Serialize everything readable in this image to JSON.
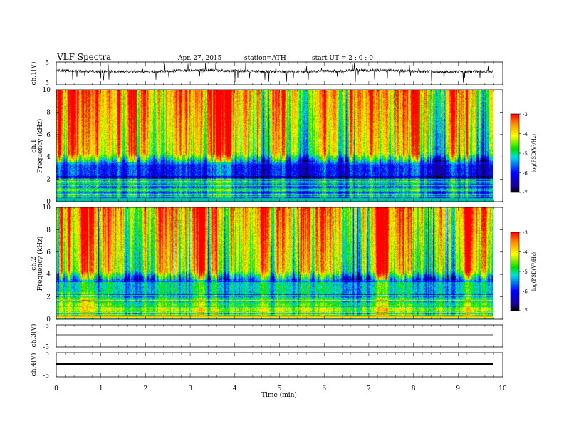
{
  "header": {
    "title": "VLF  Spectra",
    "date": "Apr. 27, 2015",
    "station": "station=ATH",
    "start": "start  UT  =   2  : 0  : 0"
  },
  "chart_data": [
    {
      "id": "ch1-waveform",
      "type": "line",
      "ylabel": "ch.1(V)",
      "ylim": [
        -5,
        5
      ],
      "yticks": [
        "5",
        "-5"
      ],
      "xlim": [
        0,
        10
      ],
      "note": "noisy waveform centred near +1 V with spikes"
    },
    {
      "id": "ch1-spectrogram",
      "type": "heatmap",
      "ylabel_top": "ch.1",
      "ylabel": "Frequency  (kHz)",
      "ylim": [
        0,
        10
      ],
      "yticks": [
        "0",
        "2",
        "4",
        "6",
        "8",
        "10"
      ],
      "xlim": [
        0,
        10
      ],
      "colorbar": {
        "label": "log(PSD(V²/Hz)",
        "range": [
          -7,
          -3
        ],
        "ticks": [
          "-3",
          "-4",
          "-5",
          "-6",
          "-7"
        ]
      }
    },
    {
      "id": "ch2-spectrogram",
      "type": "heatmap",
      "ylabel_top": "ch.2",
      "ylabel": "Frequency  (kHz)",
      "ylim": [
        0,
        10
      ],
      "yticks": [
        "0",
        "2",
        "4",
        "6",
        "8",
        "10"
      ],
      "xlim": [
        0,
        10
      ],
      "colorbar": {
        "label": "log(PSD(V²/Hz)",
        "range": [
          -7,
          -3
        ],
        "ticks": [
          "-3",
          "-4",
          "-5",
          "-6",
          "-7"
        ]
      }
    },
    {
      "id": "ch3-waveform",
      "type": "line",
      "ylabel": "ch.3(V)",
      "ylim": [
        -5,
        5
      ],
      "yticks": [
        "5",
        "-5"
      ],
      "note": "flat trace near +1 V"
    },
    {
      "id": "ch4-waveform",
      "type": "line",
      "ylabel": "ch.4(V)",
      "ylim": [
        -5,
        5
      ],
      "yticks": [
        "5",
        "-5"
      ],
      "note": "thick flat trace near 0 V"
    }
  ],
  "xaxis": {
    "label": "Time  (min)",
    "range": [
      0,
      10
    ],
    "ticks": [
      "0",
      "1",
      "2",
      "3",
      "4",
      "5",
      "6",
      "7",
      "8",
      "9",
      "10"
    ],
    "data_end": 9.8
  }
}
